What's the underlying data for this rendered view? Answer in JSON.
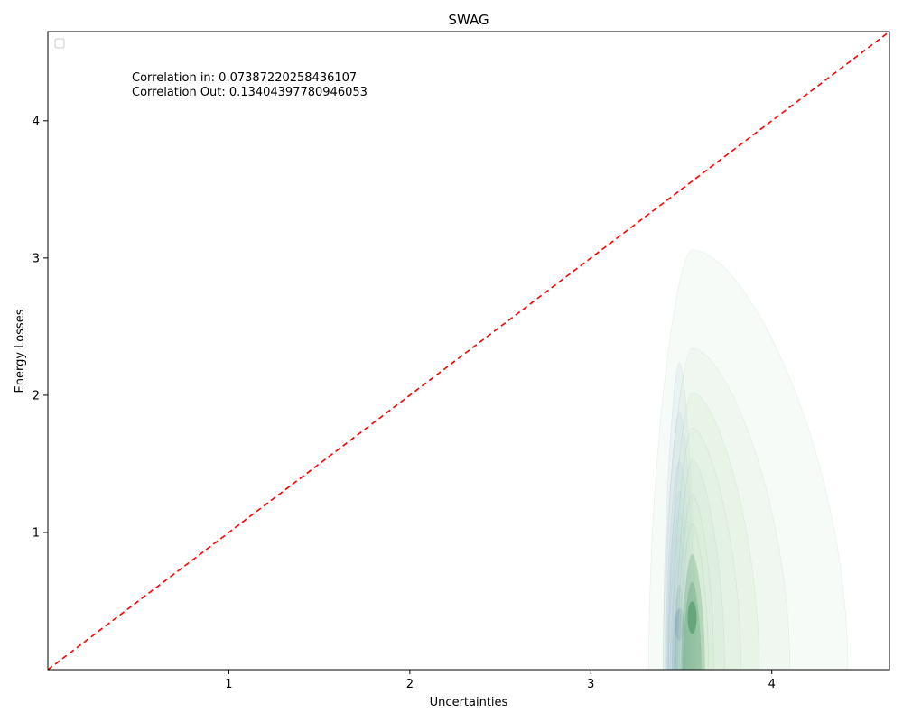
{
  "chart_data": {
    "type": "kde-contour",
    "title": "SWAG",
    "xlabel": "Uncertainties",
    "ylabel": "Energy Losses",
    "xlim": [
      0.0,
      4.65
    ],
    "ylim": [
      0.0,
      4.65
    ],
    "xticks": [
      1,
      2,
      3,
      4
    ],
    "yticks": [
      1,
      2,
      3,
      4
    ],
    "grid": false,
    "legend": "top-left (empty)",
    "annotations": [
      "Correlation in: 0.07387220258436107",
      "Correlation Out: 0.13404397780946053"
    ],
    "reference_line": {
      "x": [
        0.0,
        4.65
      ],
      "y": [
        0.0,
        4.65
      ],
      "color": "#ff0000",
      "style": "dashed"
    },
    "series": [
      {
        "color": "#a9c2e8",
        "peak_color": "#1f4fa3",
        "center": {
          "x": 3.49,
          "y": 0.33
        },
        "levels": [
          {
            "x_left": 3.4,
            "x_right": 3.58,
            "y_top": 2.24
          },
          {
            "x_left": 3.41,
            "x_right": 3.575,
            "y_top": 1.88
          },
          {
            "x_left": 3.415,
            "x_right": 3.565,
            "y_top": 1.52
          },
          {
            "x_left": 3.42,
            "x_right": 3.555,
            "y_top": 1.3
          },
          {
            "x_left": 3.425,
            "x_right": 3.545,
            "y_top": 1.14
          },
          {
            "x_left": 3.43,
            "x_right": 3.535,
            "y_top": 0.98
          },
          {
            "x_left": 3.44,
            "x_right": 3.53,
            "y_top": 0.82
          },
          {
            "x_left": 3.45,
            "x_right": 3.525,
            "y_top": 0.62
          },
          {
            "x_left": 3.46,
            "x_right": 3.52,
            "y_top": 0.44
          }
        ]
      },
      {
        "color": "#cfe8cf",
        "peak_color": "#3f8f5a",
        "center": {
          "x": 3.56,
          "y": 0.38
        },
        "levels": [
          {
            "x_left": 3.32,
            "x_right": 4.42,
            "y_top": 3.06
          },
          {
            "x_left": 3.4,
            "x_right": 4.1,
            "y_top": 2.34
          },
          {
            "x_left": 3.43,
            "x_right": 3.93,
            "y_top": 2.02
          },
          {
            "x_left": 3.45,
            "x_right": 3.83,
            "y_top": 1.76
          },
          {
            "x_left": 3.47,
            "x_right": 3.74,
            "y_top": 1.53
          },
          {
            "x_left": 3.48,
            "x_right": 3.68,
            "y_top": 1.28
          },
          {
            "x_left": 3.49,
            "x_right": 3.65,
            "y_top": 1.06
          },
          {
            "x_left": 3.5,
            "x_right": 3.63,
            "y_top": 0.84
          },
          {
            "x_left": 3.51,
            "x_right": 3.61,
            "y_top": 0.64
          }
        ]
      }
    ]
  }
}
